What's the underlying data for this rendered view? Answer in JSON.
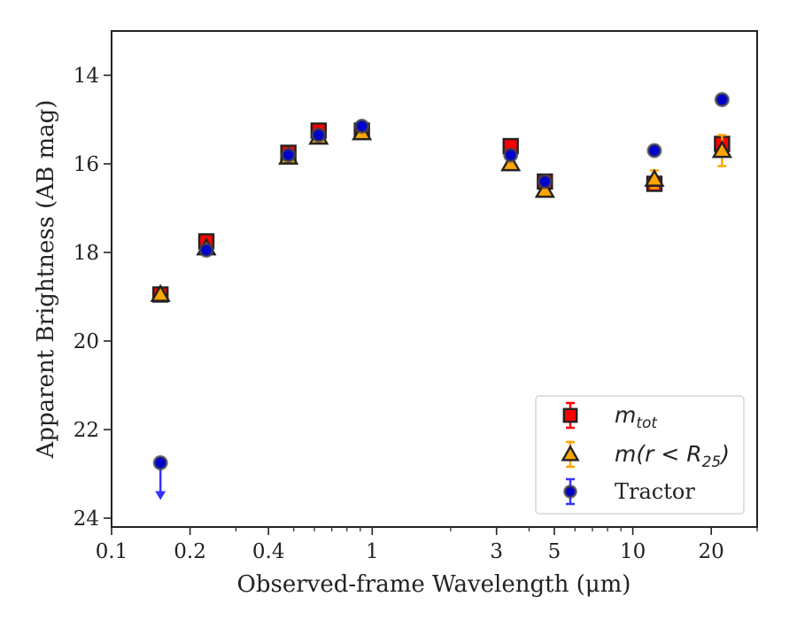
{
  "chart_data": {
    "type": "scatter",
    "xlabel": "Observed-frame Wavelength (μm)",
    "ylabel": "Apparent Brightness (AB mag)",
    "x_scale": "log",
    "xlim": [
      0.1,
      30
    ],
    "ylim": [
      24.2,
      13.0
    ],
    "y_inverted": true,
    "x_ticks": [
      {
        "value": 0.1,
        "label": "0.1"
      },
      {
        "value": 0.2,
        "label": "0.2"
      },
      {
        "value": 0.4,
        "label": "0.4"
      },
      {
        "value": 1,
        "label": "1"
      },
      {
        "value": 3,
        "label": "3"
      },
      {
        "value": 5,
        "label": "5"
      },
      {
        "value": 10,
        "label": "10"
      },
      {
        "value": 20,
        "label": "20"
      }
    ],
    "y_ticks": [
      {
        "value": 14,
        "label": "14"
      },
      {
        "value": 16,
        "label": "16"
      },
      {
        "value": 18,
        "label": "18"
      },
      {
        "value": 20,
        "label": "20"
      },
      {
        "value": 22,
        "label": "22"
      },
      {
        "value": 24,
        "label": "24"
      }
    ],
    "grid": false,
    "legend_position": "bottom-right",
    "legend": [
      {
        "series": "mtot",
        "math": "m",
        "sub": "tot",
        "suffix": ""
      },
      {
        "series": "mr25",
        "math": "m(r < R",
        "sub": "25",
        "suffix": ")"
      },
      {
        "series": "tractor",
        "text": "Tractor"
      }
    ],
    "series": [
      {
        "key": "mtot",
        "marker": "square",
        "color": "#ff0000",
        "points": [
          {
            "x": 0.154,
            "y": 18.95,
            "err": 0.08
          },
          {
            "x": 0.231,
            "y": 17.75,
            "err": 0.08
          },
          {
            "x": 0.477,
            "y": 15.75,
            "err": 0.06
          },
          {
            "x": 0.623,
            "y": 15.25,
            "err": 0.06
          },
          {
            "x": 0.913,
            "y": 15.25,
            "err": 0.06
          },
          {
            "x": 3.4,
            "y": 15.6,
            "err": 0.06
          },
          {
            "x": 4.6,
            "y": 16.4,
            "err": 0.06
          },
          {
            "x": 12.1,
            "y": 16.45,
            "err": 0.08
          },
          {
            "x": 22.0,
            "y": 15.55,
            "err": 0.15
          }
        ]
      },
      {
        "key": "mr25",
        "marker": "triangle",
        "color": "#ffa500",
        "points": [
          {
            "x": 0.154,
            "y": 18.95,
            "err": 0.05
          },
          {
            "x": 0.231,
            "y": 17.9,
            "err": 0.05
          },
          {
            "x": 0.477,
            "y": 15.85,
            "err": 0.05
          },
          {
            "x": 0.623,
            "y": 15.4,
            "err": 0.05
          },
          {
            "x": 0.913,
            "y": 15.3,
            "err": 0.05
          },
          {
            "x": 3.4,
            "y": 16.0,
            "err": 0.05
          },
          {
            "x": 4.6,
            "y": 16.6,
            "err": 0.05
          },
          {
            "x": 12.1,
            "y": 16.35,
            "err": 0.2
          },
          {
            "x": 22.0,
            "y": 15.7,
            "err": 0.35
          }
        ]
      },
      {
        "key": "tractor",
        "marker": "circle",
        "color": "#0000cc",
        "points": [
          {
            "x": 0.154,
            "y": 22.75,
            "upper_limit": true
          },
          {
            "x": 0.231,
            "y": 17.95,
            "err": 0.03
          },
          {
            "x": 0.477,
            "y": 15.8,
            "err": 0.03
          },
          {
            "x": 0.623,
            "y": 15.35,
            "err": 0.03
          },
          {
            "x": 0.913,
            "y": 15.15,
            "err": 0.03
          },
          {
            "x": 3.4,
            "y": 15.8,
            "err": 0.03
          },
          {
            "x": 4.6,
            "y": 16.4,
            "err": 0.03
          },
          {
            "x": 12.1,
            "y": 15.7,
            "err": 0.05
          },
          {
            "x": 22.0,
            "y": 14.55,
            "err": 0.05
          }
        ]
      }
    ]
  }
}
